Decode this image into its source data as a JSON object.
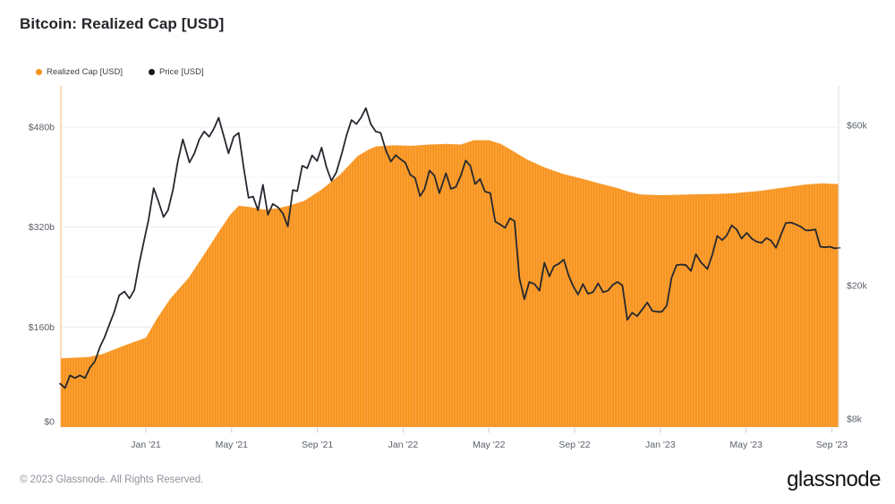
{
  "header": {
    "title": "Bitcoin: Realized Cap [USD]"
  },
  "legend": {
    "items": [
      {
        "label": "Realized Cap [USD]",
        "color": "#F7931A"
      },
      {
        "label": "Price [USD]",
        "color": "#16181D"
      }
    ]
  },
  "footer": {
    "copyright": "© 2023 Glassnode. All Rights Reserved.",
    "logo_text": "glassnode"
  },
  "colors": {
    "area_base": "#F7941E",
    "area_stripe": "#F9A23C",
    "area_edge_line": "#F8CF9E",
    "price_line": "#25282F",
    "grid_major": "#ECECEC",
    "grid_minor": "#F6F6F6",
    "plot_right_border": "#DADDE1",
    "tick": "#C9CDD3",
    "axis_text": "#5A6069"
  },
  "chart_data": {
    "type": "area",
    "title": "Bitcoin: Realized Cap [USD]",
    "x_axis": {
      "tick_labels": [
        "Jan '21",
        "May '21",
        "Sep '21",
        "Jan '22",
        "May '22",
        "Sep '22",
        "Jan '23",
        "May '23",
        "Sep '23"
      ],
      "tick_dates": [
        "2021-01-01",
        "2021-05-01",
        "2021-09-01",
        "2022-01-01",
        "2022-05-01",
        "2022-09-01",
        "2023-01-01",
        "2023-05-01",
        "2023-09-01"
      ]
    },
    "left_axis": {
      "unit": "USD billions",
      "tick_labels": [
        "$0",
        "$160b",
        "$320b",
        "$480b"
      ],
      "tick_values": [
        0,
        160,
        320,
        480
      ],
      "minor_gridlines": [
        80,
        240,
        400
      ],
      "range": [
        0,
        540
      ]
    },
    "right_axis": {
      "unit": "USD thousands",
      "scale": "log",
      "tick_labels": [
        "$8k",
        "$20k",
        "$60k"
      ],
      "tick_values": [
        8,
        20,
        60
      ]
    },
    "series": [
      {
        "name": "Realized Cap [USD]",
        "type": "area",
        "axis": "left",
        "unit": "USD billions",
        "points": [
          [
            "2020-09-02",
            110
          ],
          [
            "2020-10-12",
            112
          ],
          [
            "2020-11-01",
            117
          ],
          [
            "2020-12-02",
            131
          ],
          [
            "2021-01-01",
            143
          ],
          [
            "2021-01-16",
            172
          ],
          [
            "2021-02-05",
            205
          ],
          [
            "2021-03-01",
            239
          ],
          [
            "2021-03-25",
            280
          ],
          [
            "2021-04-14",
            314
          ],
          [
            "2021-04-29",
            339
          ],
          [
            "2021-05-11",
            354
          ],
          [
            "2021-05-27",
            352
          ],
          [
            "2021-06-16",
            348
          ],
          [
            "2021-07-05",
            350
          ],
          [
            "2021-07-21",
            354
          ],
          [
            "2021-08-13",
            362
          ],
          [
            "2021-09-07",
            380
          ],
          [
            "2021-10-03",
            404
          ],
          [
            "2021-10-28",
            434
          ],
          [
            "2021-11-13",
            444
          ],
          [
            "2021-11-23",
            449
          ],
          [
            "2021-12-18",
            451
          ],
          [
            "2022-01-13",
            450
          ],
          [
            "2022-02-07",
            452
          ],
          [
            "2022-03-03",
            453
          ],
          [
            "2022-03-22",
            452
          ],
          [
            "2022-04-10",
            459
          ],
          [
            "2022-05-01",
            459
          ],
          [
            "2022-05-18",
            453
          ],
          [
            "2022-06-06",
            441
          ],
          [
            "2022-06-25",
            428
          ],
          [
            "2022-07-20",
            415
          ],
          [
            "2022-08-15",
            405
          ],
          [
            "2022-09-10",
            398
          ],
          [
            "2022-10-05",
            390
          ],
          [
            "2022-10-30",
            383
          ],
          [
            "2022-11-19",
            376
          ],
          [
            "2022-12-04",
            372
          ],
          [
            "2023-01-02",
            371
          ],
          [
            "2023-02-10",
            372
          ],
          [
            "2023-03-19",
            373
          ],
          [
            "2023-04-13",
            374
          ],
          [
            "2023-05-21",
            378
          ],
          [
            "2023-06-16",
            382
          ],
          [
            "2023-07-23",
            388
          ],
          [
            "2023-08-18",
            390
          ],
          [
            "2023-09-04",
            389
          ],
          [
            "2023-09-10",
            389
          ]
        ]
      },
      {
        "name": "Price [USD]",
        "type": "line",
        "axis": "right",
        "unit": "USD thousands",
        "start_date": "2020-09-01",
        "interval_days": 7,
        "values": [
          10.2,
          9.9,
          10.8,
          10.6,
          10.8,
          10.6,
          11.4,
          11.9,
          13.1,
          14.0,
          15.3,
          16.7,
          18.7,
          19.2,
          18.3,
          19.4,
          23.3,
          27.3,
          31.5,
          39.0,
          35.5,
          32.0,
          33.5,
          38.5,
          47.0,
          54.5,
          46.5,
          49.5,
          54.5,
          57.5,
          55.5,
          58.5,
          63.2,
          56.0,
          49.5,
          55.5,
          57.0,
          45.0,
          36.5,
          36.8,
          33.5,
          39.9,
          32.5,
          35.0,
          34.2,
          32.8,
          30.0,
          38.5,
          38.2,
          45.5,
          44.7,
          48.8,
          47.0,
          51.5,
          45.0,
          41.0,
          43.5,
          49.2,
          56.0,
          62.2,
          60.5,
          63.2,
          67.5,
          60.5,
          57.5,
          57.0,
          50.5,
          46.8,
          48.9,
          47.5,
          46.5,
          42.8,
          41.8,
          36.9,
          38.7,
          44.0,
          42.5,
          37.7,
          43.2,
          38.8,
          39.3,
          42.4,
          47.1,
          45.5,
          40.1,
          41.5,
          38.1,
          37.7,
          31.0,
          30.4,
          29.7,
          31.7,
          31.1,
          21.0,
          18.2,
          20.5,
          20.2,
          19.3,
          23.4,
          21.3,
          22.8,
          23.2,
          23.9,
          21.4,
          19.8,
          18.8,
          20.2,
          18.9,
          19.1,
          20.3,
          19.1,
          19.3,
          20.1,
          20.5,
          20.0,
          15.8,
          16.6,
          16.2,
          17.0,
          17.8,
          16.8,
          16.7,
          16.7,
          17.4,
          21.1,
          23.0,
          23.1,
          23.0,
          22.1,
          24.8,
          23.5,
          22.4,
          24.7,
          28.1,
          27.3,
          28.2,
          30.2,
          29.4,
          27.6,
          28.7,
          27.6,
          27.0,
          26.8,
          27.7,
          27.2,
          25.9,
          28.3,
          30.7,
          30.8,
          30.4,
          29.9,
          29.2,
          29.2,
          29.4,
          26.1,
          26.0,
          26.1,
          25.8,
          25.9
        ]
      }
    ]
  }
}
